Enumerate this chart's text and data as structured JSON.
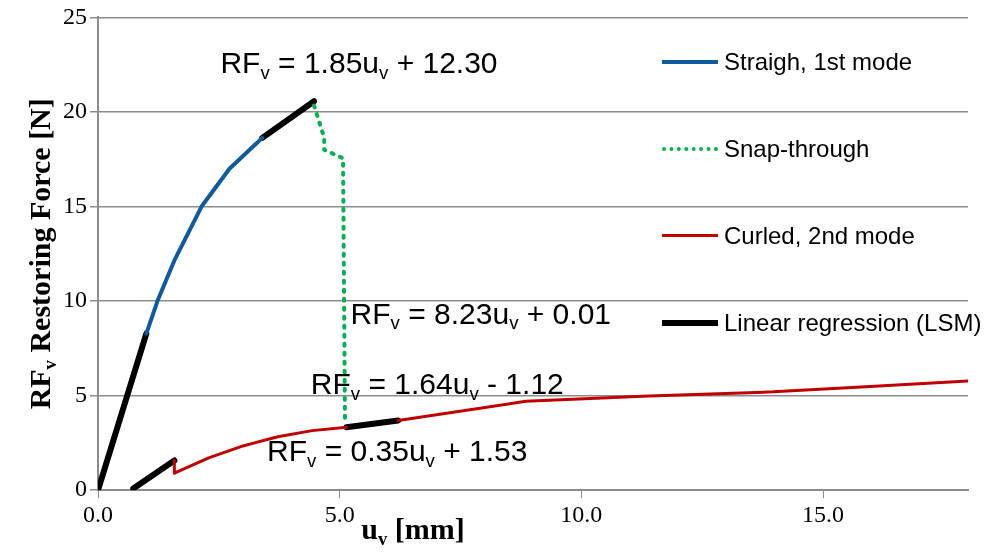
{
  "chart_data": {
    "type": "line",
    "xlabel": "u$_{v}$ [mm]",
    "ylabel": "RF$_{v}$ Restoring Force [N]",
    "xlim": [
      0,
      18
    ],
    "xticks": [
      {
        "value": 0,
        "label": "0.0"
      },
      {
        "value": 5,
        "label": "5.0"
      },
      {
        "value": 10,
        "label": "10.0"
      },
      {
        "value": 15,
        "label": "15.0"
      }
    ],
    "ylim": [
      0,
      25
    ],
    "yticks": [
      0,
      5,
      10,
      15,
      20,
      25
    ],
    "grid": "y",
    "legend": "top right",
    "marker": "none",
    "series": [
      {
        "name": "Straigh, 1st mode",
        "color": "#0f5a9c",
        "line_style": "solid",
        "x": [
          1.0,
          1.23,
          1.58,
          2.15,
          2.72,
          3.4
        ],
        "values": [
          8.28,
          10.0,
          12.15,
          15.03,
          17.0,
          18.63
        ]
      },
      {
        "name": "Snap-through",
        "color": "#00b050",
        "line_style": "dotted",
        "x": [
          4.47,
          4.68,
          4.68,
          5.07,
          5.11
        ],
        "values": [
          20.34,
          18.63,
          18.0,
          17.55,
          3.51
        ]
      },
      {
        "name": "Curled, 2nd mode",
        "color": "#c00000",
        "line_style": "solid",
        "x": [
          1.58,
          1.58,
          2.29,
          3.0,
          3.72,
          4.43,
          5.14,
          null,
          6.21,
          8.85,
          11.4,
          13.97,
          15.7,
          18.0
        ],
        "values": [
          1.57,
          0.9,
          1.71,
          2.34,
          2.83,
          3.15,
          3.33,
          null,
          3.69,
          4.7,
          4.98,
          5.2,
          5.45,
          5.78
        ]
      },
      {
        "name": "Linear regression (LSM)",
        "color": "#000000",
        "line_style": "solid",
        "x": [
          0,
          1.0,
          null,
          3.4,
          4.47,
          null,
          0.73,
          1.58,
          null,
          5.14,
          6.21
        ],
        "values": [
          0,
          8.28,
          null,
          18.63,
          20.57,
          null,
          0.09,
          1.57,
          null,
          3.33,
          3.69
        ]
      }
    ],
    "annotations": [
      "RF$_{v}$ = 1.85u$_{v}$ + 12.30",
      "RF$_{v}$ = 8.23u$_{v}$ + 0.01",
      "RF$_{v}$ = 1.64u$_{v}$ - 1.12",
      "RF$_{v}$ = 0.35u$_{v}$ + 1.53"
    ]
  }
}
